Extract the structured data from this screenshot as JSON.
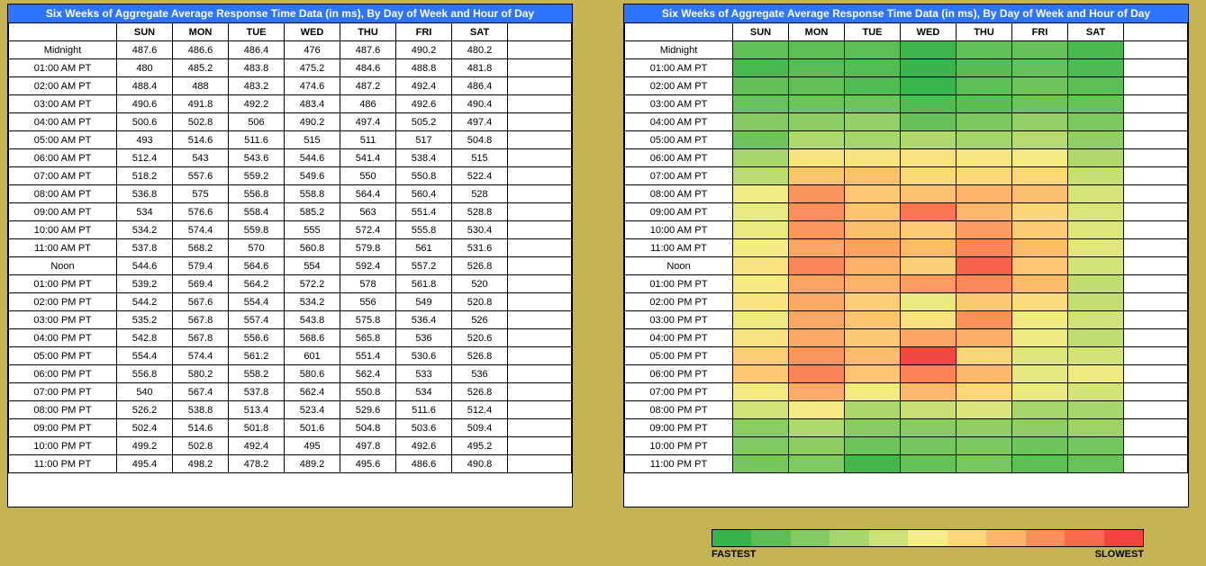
{
  "title": "Six Weeks of Aggregate Average Response Time Data (in ms), By Day of Week and Hour of Day",
  "title_bg": "#2e74ff",
  "days": [
    "SUN",
    "MON",
    "TUE",
    "WED",
    "THU",
    "FRI",
    "SAT"
  ],
  "hours": [
    "Midnight",
    "01:00 AM PT",
    "02:00 AM PT",
    "03:00 AM PT",
    "04:00 AM PT",
    "05:00 AM PT",
    "06:00 AM PT",
    "07:00 AM PT",
    "08:00 AM PT",
    "09:00 AM PT",
    "10:00 AM PT",
    "11:00 AM PT",
    "Noon",
    "01:00 PM PT",
    "02:00 PM PT",
    "03:00 PM PT",
    "04:00 PM PT",
    "05:00 PM PT",
    "06:00 PM PT",
    "07:00 PM PT",
    "08:00 PM PT",
    "09:00 PM PT",
    "10:00 PM PT",
    "11:00 PM PT"
  ],
  "values": [
    [
      487.6,
      486.6,
      486.4,
      476,
      487.6,
      490.2,
      480.2
    ],
    [
      480,
      485.2,
      483.8,
      475.2,
      484.6,
      488.8,
      481.8
    ],
    [
      488.4,
      488,
      483.2,
      474.6,
      487.2,
      492.4,
      486.4
    ],
    [
      490.6,
      491.8,
      492.2,
      483.4,
      486,
      492.6,
      490.4
    ],
    [
      500.6,
      502.8,
      506,
      490.2,
      497.4,
      505.2,
      497.4
    ],
    [
      493,
      514.6,
      511.6,
      515,
      511,
      517,
      504.8
    ],
    [
      512.4,
      543,
      543.6,
      544.6,
      541.4,
      538.4,
      515
    ],
    [
      518.2,
      557.6,
      559.2,
      549.6,
      550,
      550.8,
      522.4
    ],
    [
      536.8,
      575,
      556.8,
      558.8,
      564.4,
      560.4,
      528
    ],
    [
      534,
      576.6,
      558.4,
      585.2,
      563,
      551.4,
      528.8
    ],
    [
      534.2,
      574.4,
      559.8,
      555,
      572.4,
      555.8,
      530.4
    ],
    [
      537.8,
      568.2,
      570,
      560.8,
      579.8,
      561,
      531.6
    ],
    [
      544.6,
      579.4,
      564.6,
      554,
      592.4,
      557.2,
      526.8
    ],
    [
      539.2,
      569.4,
      564.2,
      572.2,
      578,
      561.8,
      520
    ],
    [
      544.2,
      567.6,
      554.4,
      534.2,
      556,
      549,
      520.8
    ],
    [
      535.2,
      567.8,
      557.4,
      543.8,
      575.8,
      536.4,
      526
    ],
    [
      542.8,
      567.8,
      556.6,
      568.6,
      565.8,
      536,
      520.6
    ],
    [
      554.4,
      574.4,
      561.2,
      601,
      551.4,
      530.6,
      526.8
    ],
    [
      556.8,
      580.2,
      558.2,
      580.6,
      562.4,
      533,
      536
    ],
    [
      540,
      567.4,
      537.8,
      562.4,
      550.8,
      534,
      526.8
    ],
    [
      526.2,
      538.8,
      513.4,
      523.4,
      529.6,
      511.6,
      512.4
    ],
    [
      502.4,
      514.6,
      501.8,
      501.6,
      504.8,
      503.6,
      509.4
    ],
    [
      499.2,
      502.8,
      492.4,
      495,
      497.8,
      492.6,
      495.2
    ],
    [
      495.4,
      498.2,
      478.2,
      489.2,
      495.6,
      486.6,
      490.8
    ]
  ],
  "heatmap_colors": [
    "#37b34a",
    "#5cbf55",
    "#82ca61",
    "#a8d66c",
    "#cee178",
    "#f4ec84",
    "#fbd77a",
    "#fcb56b",
    "#fa8f5c",
    "#f76a4e",
    "#f34540"
  ],
  "heatmap_domain": [
    474,
    602
  ],
  "legend": {
    "fast": "FASTEST",
    "slow": "SLOWEST"
  }
}
